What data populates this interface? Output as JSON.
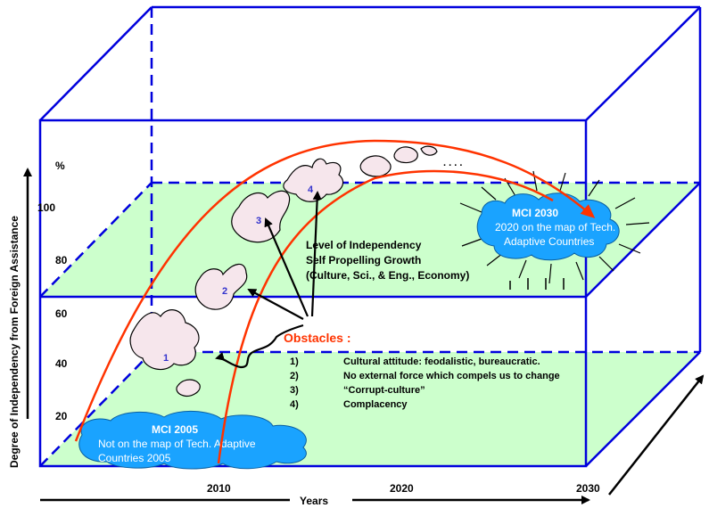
{
  "y_axis": {
    "title": "Degree of Independency from Foreign Assistance",
    "unit": "%",
    "ticks": [
      "100",
      "80",
      "60",
      "40",
      "20"
    ]
  },
  "x_axis": {
    "title": "Years",
    "ticks": [
      "2010",
      "2020",
      "2030"
    ]
  },
  "mci_2005": {
    "title": "MCI 2005",
    "line1": "Not on the map of Tech. Adaptive",
    "line2": "Countries 2005"
  },
  "mci_2030": {
    "title": "MCI 2030",
    "line1": "2020 on the map of Tech.",
    "line2": "Adaptive Countries"
  },
  "independency": {
    "line1": "Level of Independency",
    "line2": "Self Propelling Growth",
    "line3": "(Culture, Sci., & Eng., Economy)"
  },
  "obstacles": {
    "title": "Obstacles :",
    "items": [
      {
        "num": "1)",
        "text": "Cultural attitude: feodalistic, bureaucratic."
      },
      {
        "num": "2)",
        "text": "No external force which compels us to change"
      },
      {
        "num": "3)",
        "text": "“Corrupt-culture”"
      },
      {
        "num": "4)",
        "text": "Complacency"
      }
    ]
  },
  "blob_labels": [
    "1",
    "2",
    "3",
    "4"
  ],
  "ellipsis": ". . . .",
  "colors": {
    "box": "#0000dd",
    "plane": "#ccffcc",
    "cloud": "#1aa3ff",
    "curve": "#ff3300",
    "obstacles": "#ff3300"
  }
}
